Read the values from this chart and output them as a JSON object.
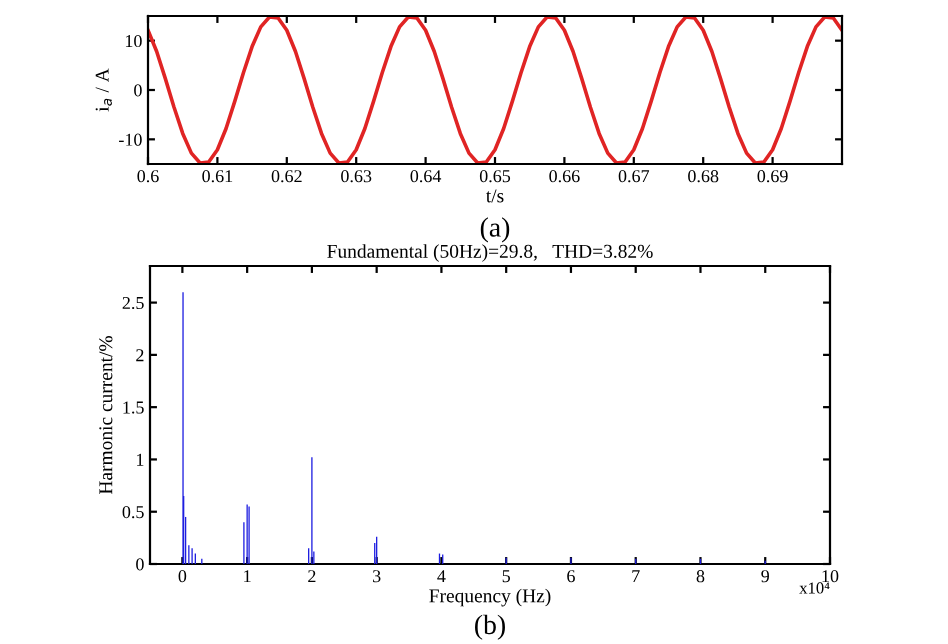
{
  "chart_data": [
    {
      "type": "line",
      "xlabel": "t/s",
      "ylabel": "i$_{a}$ / A",
      "annotations": [
        "(a)"
      ],
      "xlim": [
        0.6,
        0.7
      ],
      "ylim": [
        -15,
        15
      ],
      "xticks": [
        0.6,
        0.61,
        0.62,
        0.63,
        0.64,
        0.65,
        0.66,
        0.67,
        0.68,
        0.69
      ],
      "yticks": [
        -10,
        0,
        10
      ],
      "grid": false,
      "marker": "none",
      "line_style": "solid",
      "series": [
        {
          "color": "#e02424",
          "x": [
            0.6,
            0.60125,
            0.6025,
            0.60375,
            0.605,
            0.60625,
            0.6075,
            0.60875,
            0.61,
            0.61125,
            0.6125,
            0.61375,
            0.615,
            0.61625,
            0.6175,
            0.61875,
            0.62,
            0.62125,
            0.6225,
            0.62375,
            0.625,
            0.62625,
            0.6275,
            0.62875,
            0.63,
            0.63125,
            0.6325,
            0.63375,
            0.635,
            0.63625,
            0.6375,
            0.63875,
            0.64,
            0.64125,
            0.6425,
            0.64375,
            0.645,
            0.64625,
            0.6475,
            0.64875,
            0.65,
            0.65125,
            0.6525,
            0.65375,
            0.655,
            0.65625,
            0.6575,
            0.65875,
            0.66,
            0.66125,
            0.6625,
            0.66375,
            0.665,
            0.66625,
            0.6675,
            0.66875,
            0.67,
            0.67125,
            0.6725,
            0.67375,
            0.675,
            0.67625,
            0.6775,
            0.67875,
            0.68,
            0.68125,
            0.6825,
            0.68375,
            0.685,
            0.68625,
            0.6875,
            0.68875,
            0.69,
            0.69125,
            0.6925,
            0.69375,
            0.695,
            0.69625,
            0.6975,
            0.69875,
            0.7
          ],
          "values": [
            12.1,
            7.8,
            2.3,
            -3.5,
            -8.8,
            -12.8,
            -14.8,
            -14.6,
            -12.1,
            -7.8,
            -2.3,
            3.5,
            8.8,
            12.8,
            14.8,
            14.6,
            12.1,
            7.8,
            2.3,
            -3.5,
            -8.8,
            -12.8,
            -14.8,
            -14.6,
            -12.1,
            -7.8,
            -2.3,
            3.5,
            8.8,
            12.8,
            14.8,
            14.6,
            12.1,
            7.8,
            2.3,
            -3.5,
            -8.8,
            -12.8,
            -14.8,
            -14.6,
            -12.1,
            -7.8,
            -2.3,
            3.5,
            8.8,
            12.8,
            14.8,
            14.6,
            12.1,
            7.8,
            2.3,
            -3.5,
            -8.8,
            -12.8,
            -14.8,
            -14.6,
            -12.1,
            -7.8,
            -2.3,
            3.5,
            8.8,
            12.8,
            14.8,
            14.6,
            12.1,
            7.8,
            2.3,
            -3.5,
            -8.8,
            -12.8,
            -14.8,
            -14.6,
            -12.1,
            -7.8,
            -2.3,
            3.5,
            8.8,
            12.8,
            14.8,
            14.6,
            12.1
          ]
        }
      ]
    },
    {
      "type": "bar",
      "title": "Fundamental (50Hz)=29.8,   THD=3.82%",
      "xlabel": "Frequency (Hz)",
      "ylabel": "Harmonic current/%",
      "annotations": [
        "x10⁴",
        "(b)"
      ],
      "xlim": [
        -0.5,
        10
      ],
      "ylim": [
        0,
        2.85
      ],
      "xticks": [
        0,
        1,
        2,
        3,
        4,
        5,
        6,
        7,
        8,
        9,
        10
      ],
      "yticks": [
        0,
        0.5,
        1,
        1.5,
        2,
        2.5
      ],
      "grid": false,
      "series": [
        {
          "color": "#1c1ce0",
          "x": [
            0.01,
            0.02,
            0.05,
            0.1,
            0.15,
            0.2,
            0.3,
            0.95,
            1.0,
            1.03,
            1.95,
            2.0,
            2.03,
            2.97,
            3.0,
            3.97,
            4.02,
            5.0,
            6.0,
            7.0,
            8.0,
            9.0
          ],
          "values": [
            2.6,
            0.65,
            0.45,
            0.18,
            0.15,
            0.1,
            0.05,
            0.4,
            0.57,
            0.55,
            0.15,
            1.02,
            0.12,
            0.2,
            0.26,
            0.1,
            0.09,
            0.06,
            0.06,
            0.05,
            0.05,
            0.03
          ]
        }
      ]
    }
  ]
}
